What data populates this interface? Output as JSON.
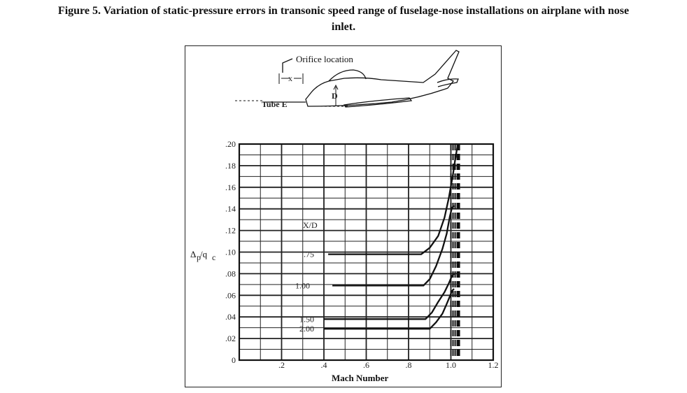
{
  "figure": {
    "caption_line1": "Figure 5. Variation of static-pressure errors in transonic speed range of fuselage-nose installations on airplane with nose",
    "caption_line2": "inlet."
  },
  "inset": {
    "orifice_label": "Orifice location",
    "x_label": "x",
    "d_label": "D",
    "tube_label": "Tube E"
  },
  "chart_data": {
    "type": "line",
    "xlabel": "Mach Number",
    "ylabel": "Δp/qc",
    "ylabel_main": "Δ",
    "ylabel_sub1": "p",
    "ylabel_slash": "/q",
    "ylabel_sub2": "c",
    "xlim": [
      0,
      1.2
    ],
    "ylim": [
      0,
      0.2
    ],
    "grid": true,
    "x_ticks": [
      ".2",
      ".4",
      ".6",
      ".8",
      "1.0",
      "1.2"
    ],
    "x_tick_values": [
      0.2,
      0.4,
      0.6,
      0.8,
      1.0,
      1.2
    ],
    "y_ticks": [
      "0",
      ".02",
      ".04",
      ".06",
      ".08",
      ".10",
      ".12",
      ".14",
      ".16",
      ".18",
      ".20"
    ],
    "y_tick_values": [
      0,
      0.02,
      0.04,
      0.06,
      0.08,
      0.1,
      0.12,
      0.14,
      0.16,
      0.18,
      0.2
    ],
    "legend_title": "X/D",
    "series": [
      {
        "name": ".75",
        "x": [
          0.42,
          0.86,
          0.9,
          0.94,
          0.97,
          0.99,
          1.01,
          1.02,
          1.03,
          1.035
        ],
        "y": [
          0.098,
          0.098,
          0.104,
          0.115,
          0.132,
          0.15,
          0.172,
          0.185,
          0.197,
          0.2
        ]
      },
      {
        "name": "1.00",
        "x": [
          0.44,
          0.87,
          0.9,
          0.93,
          0.96,
          0.98,
          0.995,
          1.005,
          1.015
        ],
        "y": [
          0.069,
          0.069,
          0.075,
          0.087,
          0.103,
          0.117,
          0.133,
          0.141,
          0.143
        ]
      },
      {
        "name": "1.50",
        "x": [
          0.4,
          0.88,
          0.91,
          0.94,
          0.97,
          0.99,
          1.005,
          1.015
        ],
        "y": [
          0.038,
          0.038,
          0.044,
          0.054,
          0.063,
          0.071,
          0.078,
          0.08
        ]
      },
      {
        "name": "2.00",
        "x": [
          0.4,
          0.9,
          0.93,
          0.96,
          0.98,
          0.995,
          1.005,
          1.015
        ],
        "y": [
          0.029,
          0.029,
          0.035,
          0.043,
          0.052,
          0.059,
          0.064,
          0.066
        ]
      }
    ],
    "dashed_x": [
      1.0,
      1.01,
      1.02,
      1.03,
      1.035,
      1.04
    ]
  }
}
